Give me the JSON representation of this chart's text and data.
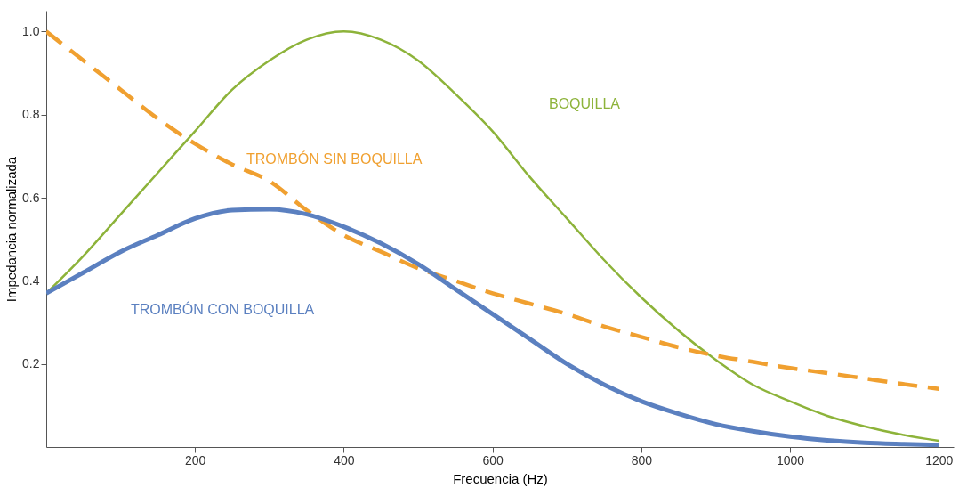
{
  "chart_data": {
    "type": "line",
    "xlabel": "Frecuencia (Hz)",
    "ylabel": "Impedancia normalizada",
    "x": [
      0,
      50,
      100,
      150,
      200,
      250,
      300,
      350,
      400,
      450,
      500,
      550,
      600,
      650,
      700,
      750,
      800,
      850,
      900,
      950,
      1000,
      1050,
      1100,
      1150,
      1200
    ],
    "series": [
      {
        "name": "BOQUILLA",
        "color": "#8db33a",
        "values": [
          0.37,
          0.46,
          0.56,
          0.66,
          0.76,
          0.86,
          0.93,
          0.98,
          1.0,
          0.98,
          0.93,
          0.85,
          0.76,
          0.65,
          0.55,
          0.45,
          0.36,
          0.28,
          0.21,
          0.15,
          0.11,
          0.075,
          0.05,
          0.03,
          0.015
        ]
      },
      {
        "name": "TROMBÓN SIN BOQUILLA",
        "color": "#f0a030",
        "line_style": "dashed",
        "values": [
          1.0,
          0.93,
          0.86,
          0.79,
          0.73,
          0.68,
          0.64,
          0.57,
          0.51,
          0.47,
          0.43,
          0.4,
          0.37,
          0.345,
          0.32,
          0.29,
          0.265,
          0.24,
          0.22,
          0.205,
          0.19,
          0.178,
          0.165,
          0.152,
          0.14
        ]
      },
      {
        "name": "TROMBÓN CON BOQUILLA",
        "color": "#5b80c0",
        "values": [
          0.37,
          0.42,
          0.47,
          0.51,
          0.55,
          0.57,
          0.572,
          0.56,
          0.53,
          0.49,
          0.44,
          0.38,
          0.32,
          0.26,
          0.2,
          0.15,
          0.11,
          0.08,
          0.055,
          0.038,
          0.025,
          0.016,
          0.01,
          0.007,
          0.005
        ]
      }
    ],
    "xlim": [
      0,
      1220
    ],
    "ylim": [
      0,
      1.05
    ],
    "xticks": [
      200,
      400,
      600,
      800,
      1000,
      1200
    ],
    "yticks": [
      0.2,
      0.4,
      0.6,
      0.8,
      {
        "value": 1,
        "label": "1.0"
      }
    ],
    "grid": false,
    "legend": false,
    "marker": "none",
    "line_style": "solid"
  }
}
